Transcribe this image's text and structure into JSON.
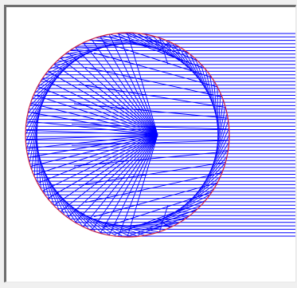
{
  "view": {
    "background": "#ffffff",
    "frame_color": "#6e6e6e"
  },
  "diagram": {
    "kind": "ray trace through circular lens",
    "ray_color": "#0000ff",
    "lens_outline_color": "#cc2244",
    "parallel_ray_count": 60,
    "radial_ray_count": 36,
    "reflected_ray_count": 24
  }
}
